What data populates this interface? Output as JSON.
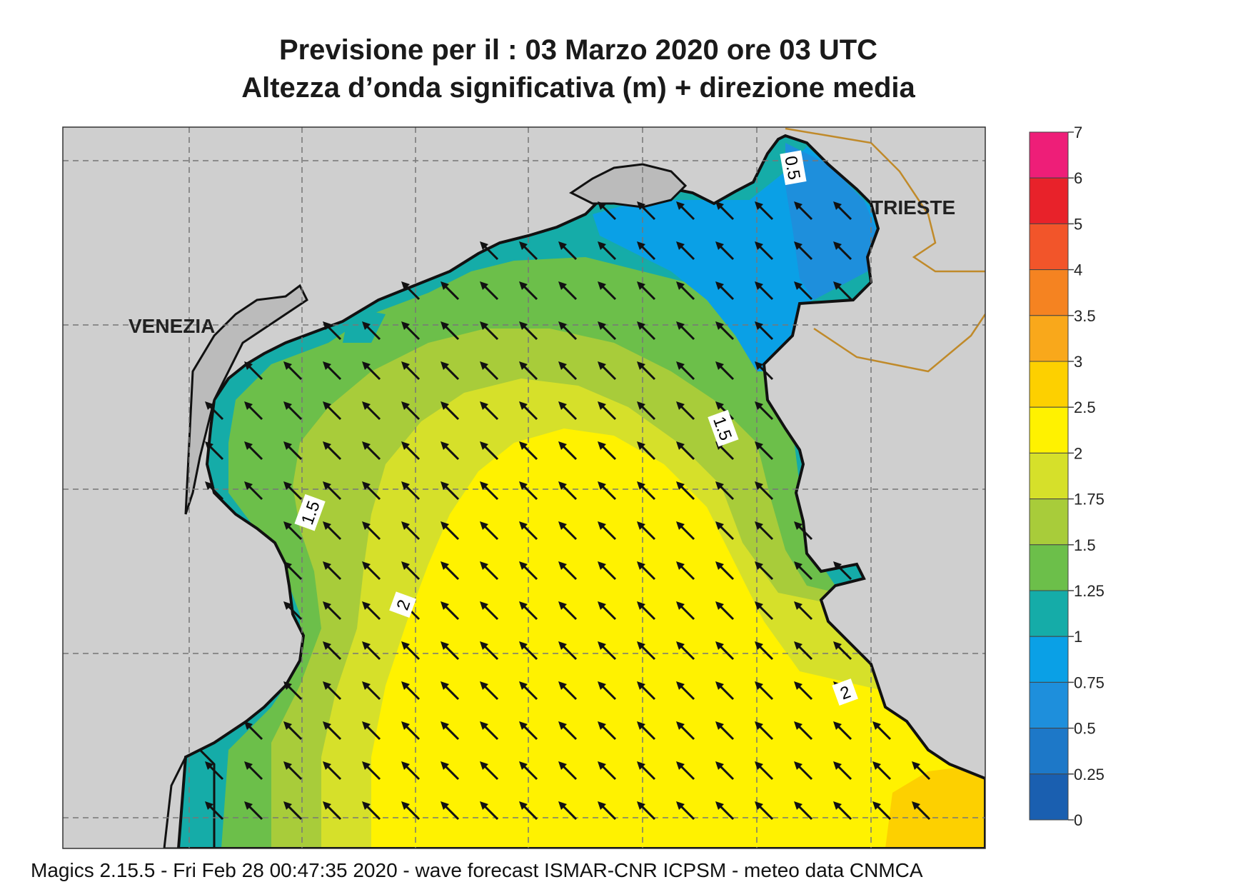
{
  "title": {
    "line1": "Previsione per il  :  03   Marzo   2020   ore 03 UTC",
    "line2": "Altezza d’onda significativa (m) + direzione media"
  },
  "map": {
    "city_labels": [
      "VENEZIA",
      "TRIESTE"
    ],
    "contour_labels": [
      "0.5",
      "1.5",
      "1.5",
      "2",
      "2"
    ],
    "arrow_direction": "north-west"
  },
  "legend": {
    "levels": [
      "7",
      "6",
      "5",
      "4",
      "3.5",
      "3",
      "2.5",
      "2",
      "1.75",
      "1.5",
      "1.25",
      "1",
      "0.75",
      "0.5",
      "0.25",
      "0"
    ],
    "colors": [
      "#ee1e78",
      "#e8222a",
      "#f2552a",
      "#f58321",
      "#f9a81b",
      "#fdd000",
      "#fff200",
      "#d6e02a",
      "#a8cc3a",
      "#6cbf4a",
      "#15aca8",
      "#0aa0e6",
      "#1e8fdc",
      "#1d78c8",
      "#1a5fb0"
    ]
  },
  "footer": "Magics 2.15.5 - Fri Feb 28 00:47:35 2020 - wave forecast  ISMAR-CNR  ICPSM - meteo data   CNMCA"
}
